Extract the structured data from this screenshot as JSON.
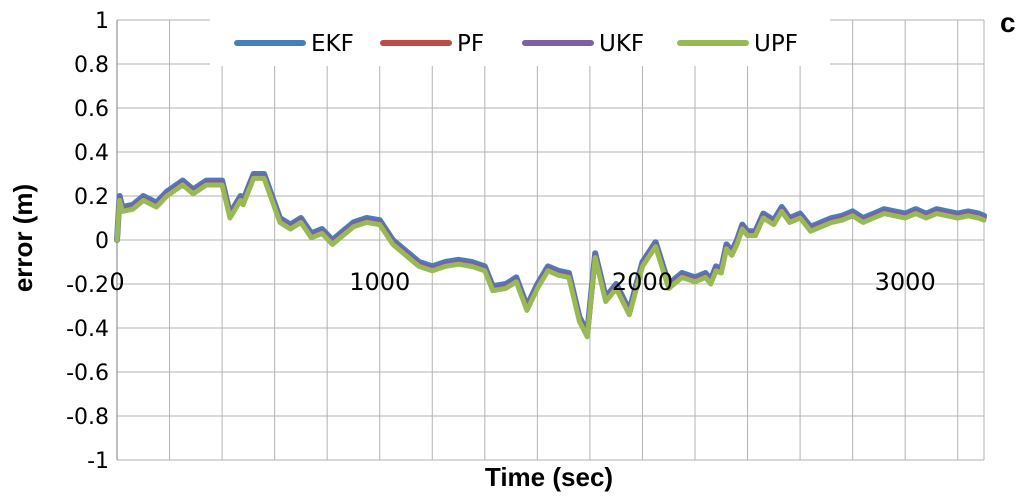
{
  "panel_label": "c",
  "chart_data": {
    "type": "line",
    "title": "",
    "xlabel": "Time (sec)",
    "ylabel": "error (m)",
    "xlim": [
      0,
      3300
    ],
    "ylim": [
      -1,
      1
    ],
    "yticks": [
      "1",
      "0.8",
      "0.6",
      "0.4",
      "0.2",
      "0",
      "-0.2",
      "-0.4",
      "-0.6",
      "-0.8",
      "-1"
    ],
    "xticks": [
      "0",
      "1000",
      "2000",
      "3000"
    ],
    "grid": true,
    "legend": "top",
    "x": [
      0,
      10,
      20,
      60,
      100,
      150,
      190,
      250,
      290,
      340,
      400,
      430,
      470,
      480,
      520,
      560,
      590,
      620,
      660,
      700,
      740,
      780,
      820,
      860,
      900,
      950,
      1000,
      1050,
      1100,
      1150,
      1200,
      1250,
      1300,
      1350,
      1400,
      1430,
      1480,
      1520,
      1560,
      1600,
      1640,
      1680,
      1720,
      1760,
      1790,
      1820,
      1860,
      1900,
      1950,
      2000,
      2050,
      2100,
      2150,
      2200,
      2240,
      2260,
      2280,
      2300,
      2320,
      2340,
      2360,
      2380,
      2400,
      2430,
      2460,
      2500,
      2530,
      2560,
      2600,
      2640,
      2680,
      2720,
      2760,
      2800,
      2840,
      2880,
      2920,
      2960,
      3000,
      3040,
      3080,
      3120,
      3160,
      3200,
      3240,
      3280,
      3300
    ],
    "series": [
      {
        "name": "EKF",
        "color": "#4a7ebb",
        "values": [
          0,
          0.2,
          0.15,
          0.16,
          0.2,
          0.17,
          0.22,
          0.27,
          0.23,
          0.27,
          0.27,
          0.12,
          0.2,
          0.18,
          0.3,
          0.3,
          0.2,
          0.1,
          0.07,
          0.1,
          0.03,
          0.05,
          0.0,
          0.04,
          0.08,
          0.1,
          0.09,
          0.0,
          -0.05,
          -0.1,
          -0.12,
          -0.1,
          -0.09,
          -0.1,
          -0.12,
          -0.21,
          -0.2,
          -0.17,
          -0.3,
          -0.2,
          -0.12,
          -0.14,
          -0.15,
          -0.35,
          -0.42,
          -0.06,
          -0.26,
          -0.2,
          -0.32,
          -0.1,
          -0.01,
          -0.2,
          -0.15,
          -0.17,
          -0.15,
          -0.18,
          -0.12,
          -0.13,
          -0.02,
          -0.05,
          0.0,
          0.07,
          0.04,
          0.04,
          0.12,
          0.09,
          0.15,
          0.1,
          0.12,
          0.06,
          0.08,
          0.1,
          0.11,
          0.13,
          0.1,
          0.12,
          0.14,
          0.13,
          0.12,
          0.14,
          0.12,
          0.14,
          0.13,
          0.12,
          0.13,
          0.12,
          0.11
        ]
      },
      {
        "name": "PF",
        "color": "#be4b48",
        "values": [
          0,
          0.19,
          0.14,
          0.15,
          0.19,
          0.16,
          0.21,
          0.26,
          0.22,
          0.26,
          0.26,
          0.11,
          0.19,
          0.17,
          0.29,
          0.29,
          0.19,
          0.09,
          0.06,
          0.09,
          0.02,
          0.04,
          -0.01,
          0.03,
          0.07,
          0.09,
          0.08,
          -0.01,
          -0.06,
          -0.11,
          -0.13,
          -0.11,
          -0.1,
          -0.11,
          -0.13,
          -0.22,
          -0.21,
          -0.18,
          -0.31,
          -0.21,
          -0.13,
          -0.15,
          -0.16,
          -0.36,
          -0.43,
          -0.07,
          -0.27,
          -0.21,
          -0.33,
          -0.11,
          -0.02,
          -0.21,
          -0.16,
          -0.18,
          -0.16,
          -0.19,
          -0.13,
          -0.14,
          -0.03,
          -0.06,
          -0.01,
          0.06,
          0.03,
          0.03,
          0.11,
          0.08,
          0.14,
          0.09,
          0.11,
          0.05,
          0.07,
          0.09,
          0.1,
          0.12,
          0.09,
          0.11,
          0.13,
          0.12,
          0.11,
          0.13,
          0.11,
          0.13,
          0.12,
          0.11,
          0.12,
          0.11,
          0.1
        ]
      },
      {
        "name": "UKF",
        "color": "#7d60a0",
        "values": [
          0,
          0.19,
          0.14,
          0.15,
          0.19,
          0.16,
          0.21,
          0.26,
          0.22,
          0.26,
          0.26,
          0.11,
          0.19,
          0.17,
          0.29,
          0.29,
          0.19,
          0.09,
          0.06,
          0.09,
          0.02,
          0.04,
          -0.01,
          0.03,
          0.07,
          0.09,
          0.08,
          -0.01,
          -0.06,
          -0.11,
          -0.13,
          -0.11,
          -0.1,
          -0.11,
          -0.13,
          -0.22,
          -0.21,
          -0.18,
          -0.31,
          -0.21,
          -0.13,
          -0.15,
          -0.16,
          -0.36,
          -0.43,
          -0.07,
          -0.27,
          -0.21,
          -0.33,
          -0.11,
          -0.02,
          -0.21,
          -0.16,
          -0.18,
          -0.16,
          -0.19,
          -0.13,
          -0.14,
          -0.03,
          -0.06,
          -0.01,
          0.06,
          0.03,
          0.03,
          0.11,
          0.08,
          0.14,
          0.09,
          0.11,
          0.05,
          0.07,
          0.09,
          0.1,
          0.12,
          0.09,
          0.11,
          0.13,
          0.12,
          0.11,
          0.13,
          0.11,
          0.13,
          0.12,
          0.11,
          0.12,
          0.11,
          0.1
        ]
      },
      {
        "name": "UPF",
        "color": "#98b954",
        "values": [
          0,
          0.18,
          0.13,
          0.14,
          0.18,
          0.15,
          0.2,
          0.25,
          0.21,
          0.25,
          0.25,
          0.1,
          0.18,
          0.16,
          0.28,
          0.28,
          0.18,
          0.08,
          0.05,
          0.08,
          0.01,
          0.03,
          -0.02,
          0.02,
          0.06,
          0.08,
          0.07,
          -0.02,
          -0.07,
          -0.12,
          -0.14,
          -0.12,
          -0.11,
          -0.12,
          -0.14,
          -0.23,
          -0.22,
          -0.19,
          -0.32,
          -0.22,
          -0.14,
          -0.16,
          -0.17,
          -0.37,
          -0.44,
          -0.08,
          -0.28,
          -0.22,
          -0.34,
          -0.12,
          -0.03,
          -0.22,
          -0.17,
          -0.19,
          -0.17,
          -0.2,
          -0.14,
          -0.15,
          -0.04,
          -0.07,
          -0.02,
          0.05,
          0.02,
          0.02,
          0.1,
          0.07,
          0.13,
          0.08,
          0.1,
          0.04,
          0.06,
          0.08,
          0.09,
          0.11,
          0.08,
          0.1,
          0.12,
          0.11,
          0.1,
          0.12,
          0.1,
          0.12,
          0.11,
          0.1,
          0.11,
          0.1,
          0.09
        ]
      }
    ]
  }
}
